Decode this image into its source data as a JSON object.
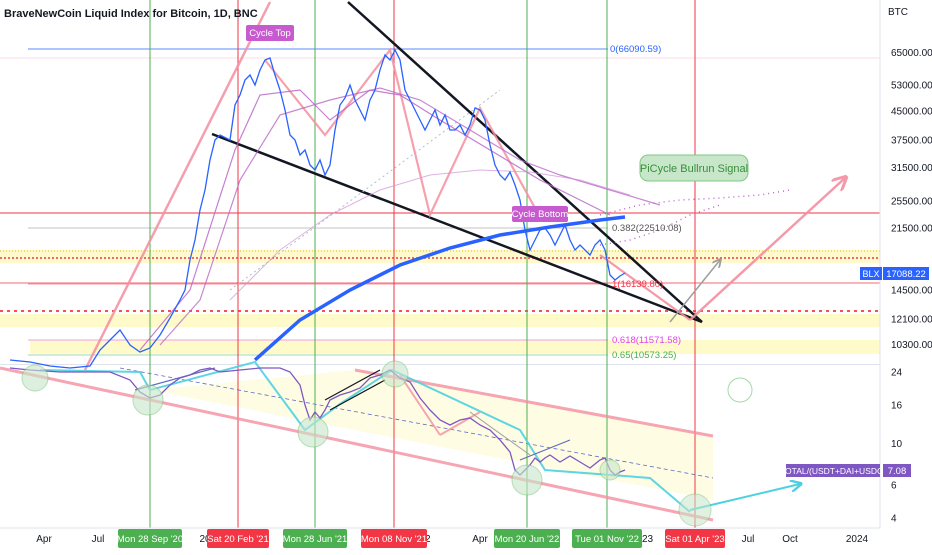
{
  "chart_data": {
    "type": "line",
    "title": "BraveNewCoin Liquid Index for Bitcoin, 1D, BNC",
    "currency": "BTC",
    "price_axis": {
      "scale": "log",
      "ticks": [
        "65000.00",
        "53000.00",
        "45000.00",
        "37500.00",
        "31500.00",
        "25500.00",
        "21500.00",
        "17088.22",
        "14500.00",
        "12100.00",
        "10300.00"
      ],
      "tick_values": [
        65000,
        53000,
        45000,
        37500,
        31500,
        25500,
        21500,
        17088.22,
        14500,
        12100,
        10300
      ],
      "current_label": "BLX",
      "current_value": "17088.22"
    },
    "lower_axis": {
      "ticks": [
        "24",
        "16",
        "10",
        "6",
        "4"
      ],
      "tick_values": [
        24,
        16,
        10,
        6,
        4
      ],
      "indicator_label": "TOTAL/(USDT+DAI+USDC)",
      "indicator_value": "7.08"
    },
    "time_axis": {
      "ticks": [
        "Apr",
        "Jul",
        "2021",
        "Apr",
        "Jul",
        "2022",
        "Apr",
        "2023",
        "Jul",
        "Oct",
        "2024"
      ],
      "visible_ticks": [
        "Apr",
        "Jul",
        "20",
        "21",
        "22",
        "Apr",
        "23",
        "Jul",
        "Oct",
        "2024"
      ]
    },
    "vertical_markers": [
      {
        "label": "Mon 28 Sep '20",
        "color": "#4caf50"
      },
      {
        "label": "Sat 20 Feb '21",
        "color": "#f23645"
      },
      {
        "label": "Mon 28 Jun '21",
        "color": "#4caf50"
      },
      {
        "label": "Mon 08 Nov '21",
        "color": "#f23645"
      },
      {
        "label": "Mon 20 Jun '22",
        "color": "#4caf50"
      },
      {
        "label": "Tue 01 Nov '22",
        "color": "#4caf50"
      },
      {
        "label": "Sat 01 Apr '23",
        "color": "#f23645"
      }
    ],
    "fib_levels": [
      {
        "text": "0(66090.59)",
        "value": 66090.59,
        "color": "#2962ff"
      },
      {
        "text": "0.382(22510.08)",
        "value": 22510.08,
        "color": "#555555"
      },
      {
        "text": "1(16139.80)",
        "value": 16139.8,
        "color": "#f23645"
      },
      {
        "text": "0.618(11571.58)",
        "value": 11571.58,
        "color": "#e040fb"
      },
      {
        "text": "0.65(10573.25)",
        "value": 10573.25,
        "color": "#4caf50"
      }
    ],
    "annotations": [
      {
        "text": "Cycle Top",
        "color": "#c85ad0"
      },
      {
        "text": "Cycle Bottom",
        "color": "#c85ad0"
      },
      {
        "text": "PiCycle Bullrun Signal",
        "color": "#81c784"
      }
    ],
    "series": [
      {
        "name": "BLX",
        "color": "#2962ff"
      },
      {
        "name": "TOTAL/(USDT+DAI+USDC)",
        "color": "#7e57c2"
      }
    ],
    "colors": {
      "up": "#4caf50",
      "down": "#f23645",
      "price": "#2962ff",
      "indicator": "#7e57c2",
      "ma": "#ba68c8",
      "trend": "#131722",
      "zone": "#fff59d"
    }
  }
}
